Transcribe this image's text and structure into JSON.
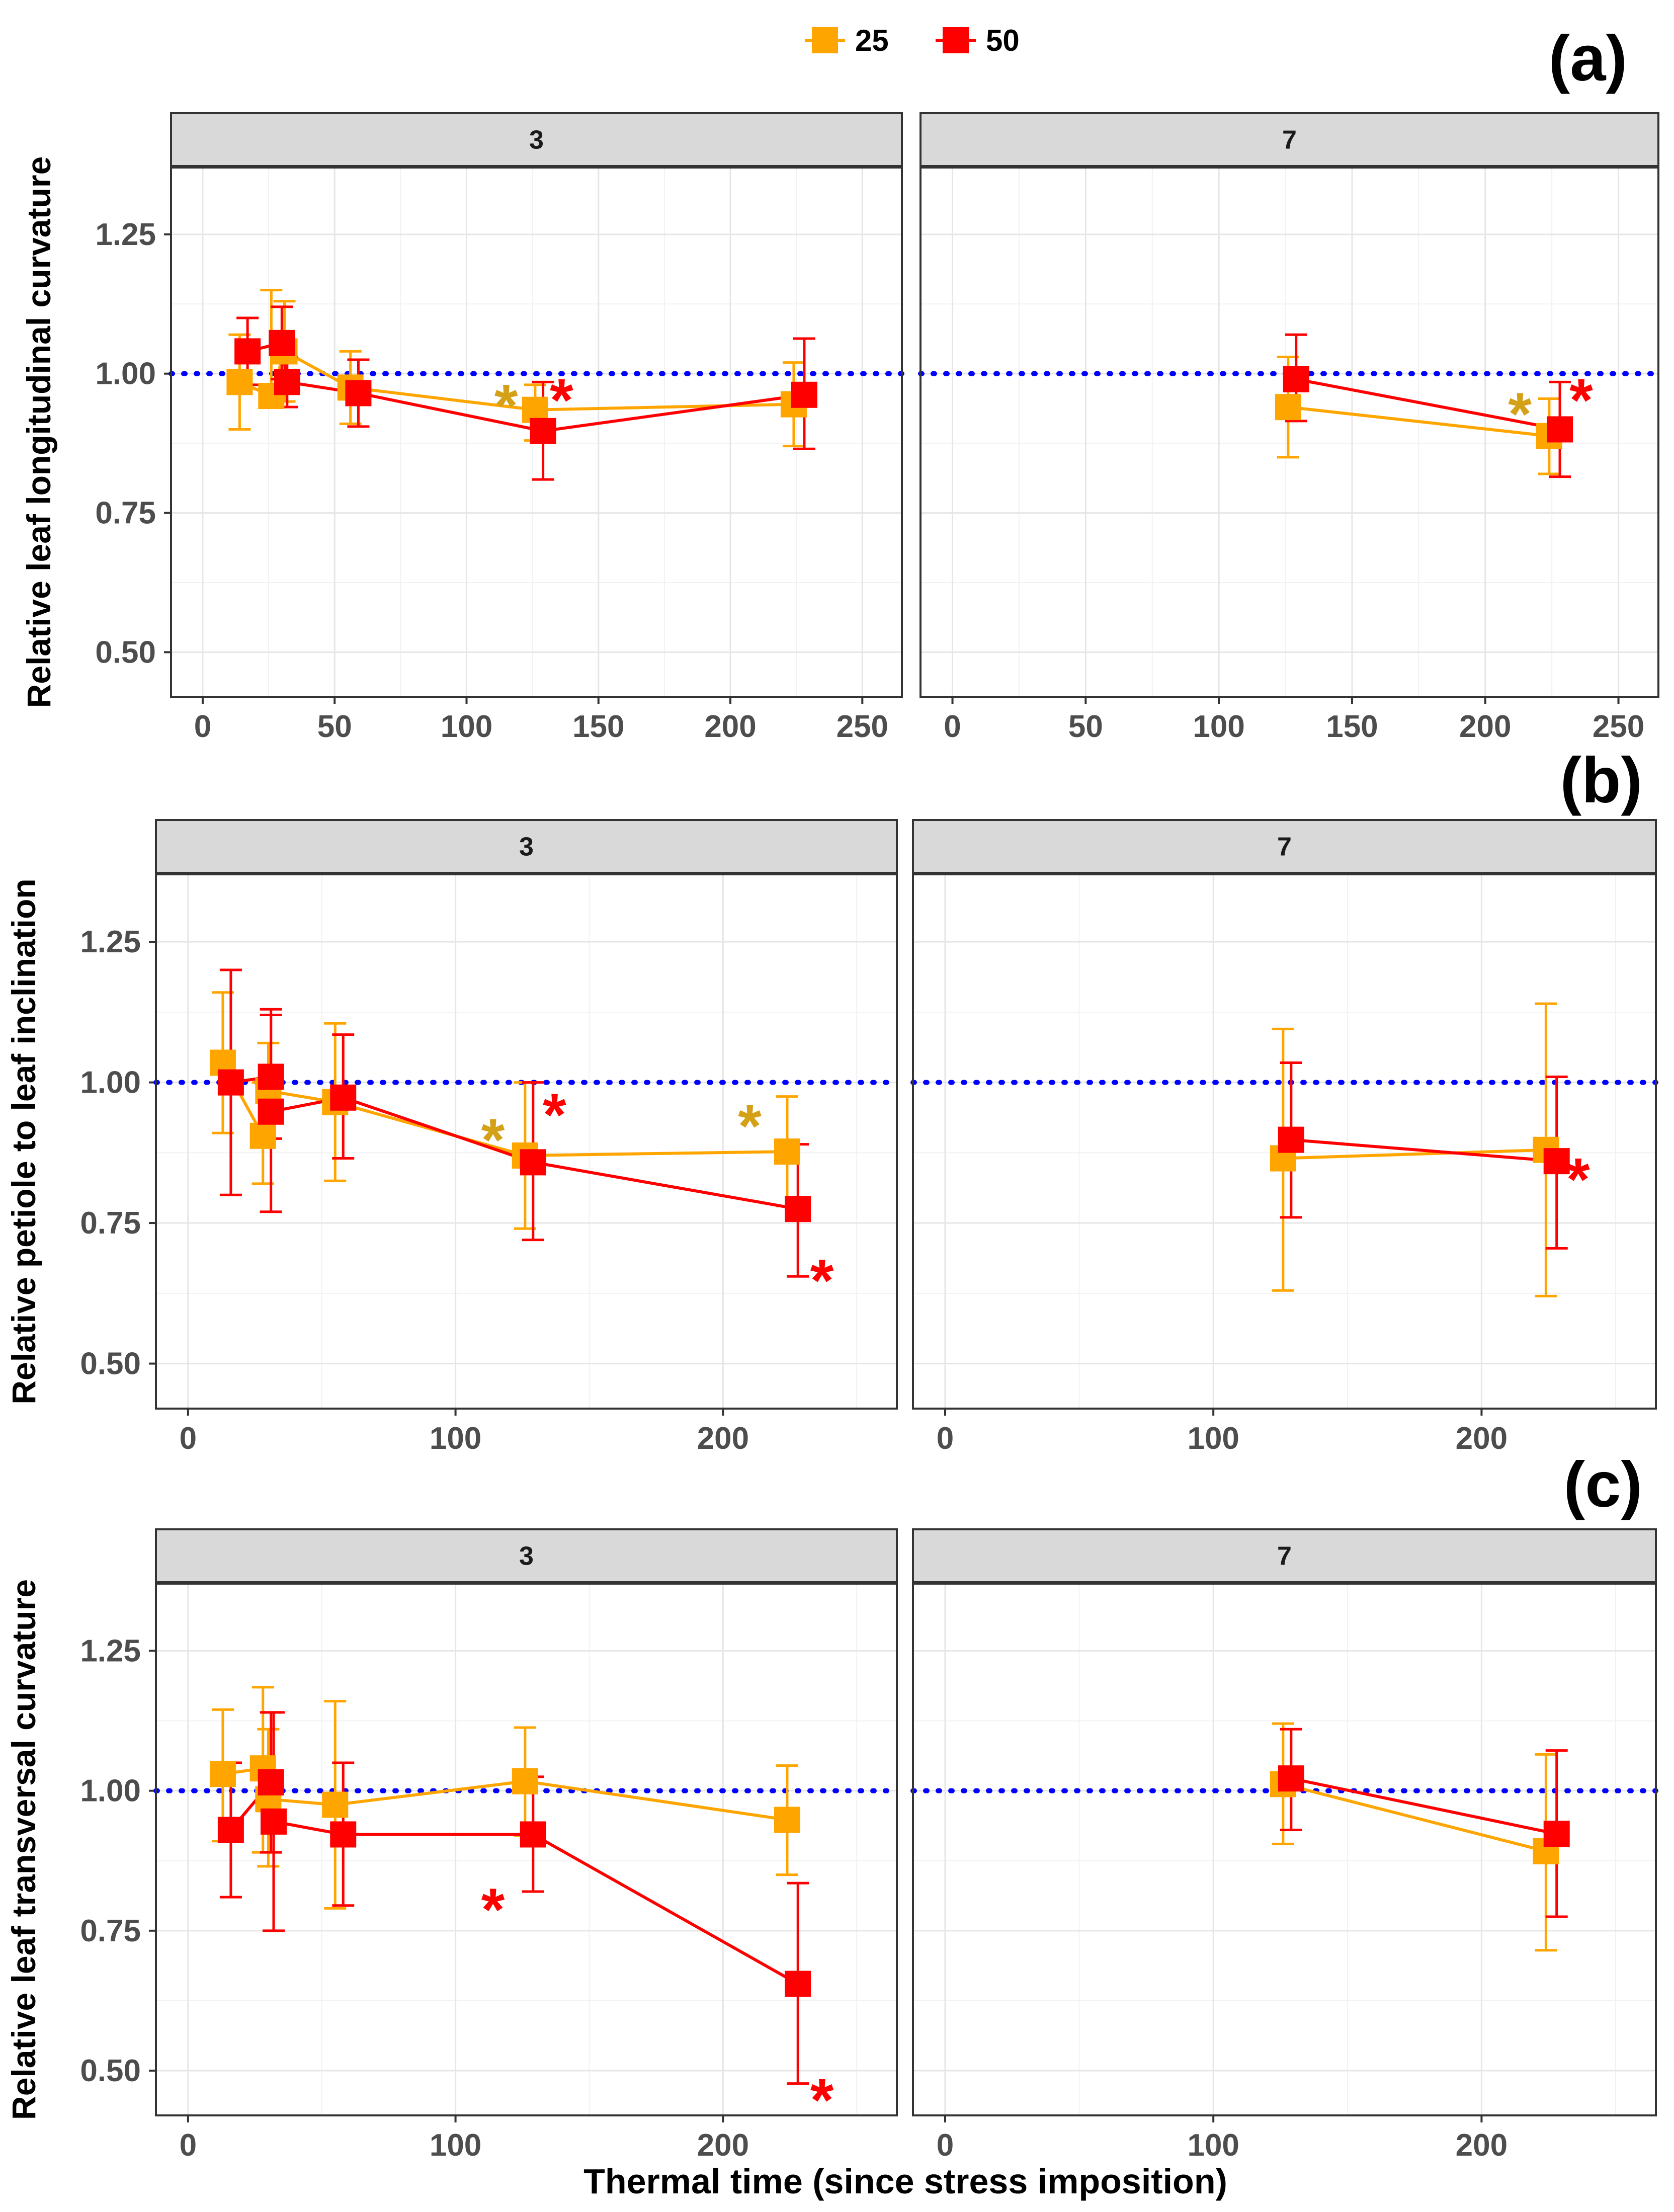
{
  "chart_data": {
    "type": "line",
    "xlabel": "Thermal time (since stress imposition)",
    "legend": {
      "position": "top-center",
      "entries": [
        {
          "name": "25",
          "color": "#FFA500"
        },
        {
          "name": "50",
          "color": "#FF0000"
        }
      ]
    },
    "reference_line": {
      "y": 1.0,
      "color": "#0000FF",
      "style": "dotted"
    },
    "ylim": [
      0.42,
      1.37
    ],
    "yticks": [
      "0.50",
      "0.75",
      "1.00",
      "1.25"
    ],
    "panels": [
      {
        "tag": "(a)",
        "ylabel": "Relative leaf longitudinal curvature",
        "xlim": [
          -12,
          265
        ],
        "xticks": [
          "0",
          "50",
          "100",
          "150",
          "200",
          "250"
        ],
        "facets": [
          {
            "strip": "3",
            "series": [
              {
                "name": "25",
                "points": [
                  {
                    "x": 14,
                    "y": 0.985,
                    "lo": 0.9,
                    "hi": 1.07
                  },
                  {
                    "x": 26,
                    "y": 0.96,
                    "lo": 0.94,
                    "hi": 1.15
                  },
                  {
                    "x": 31,
                    "y": 1.04,
                    "lo": 0.95,
                    "hi": 1.13
                  },
                  {
                    "x": 56,
                    "y": 0.975,
                    "lo": 0.91,
                    "hi": 1.04
                  },
                  {
                    "x": 126,
                    "y": 0.935,
                    "lo": 0.88,
                    "hi": 0.98
                  },
                  {
                    "x": 224,
                    "y": 0.945,
                    "lo": 0.87,
                    "hi": 1.02
                  }
                ]
              },
              {
                "name": "50",
                "points": [
                  {
                    "x": 17,
                    "y": 1.04,
                    "lo": 0.98,
                    "hi": 1.1
                  },
                  {
                    "x": 30,
                    "y": 1.055,
                    "lo": 0.99,
                    "hi": 1.12
                  },
                  {
                    "x": 32,
                    "y": 0.985,
                    "lo": 0.94,
                    "hi": 1.03
                  },
                  {
                    "x": 59,
                    "y": 0.965,
                    "lo": 0.905,
                    "hi": 1.025
                  },
                  {
                    "x": 129,
                    "y": 0.897,
                    "lo": 0.81,
                    "hi": 0.985
                  },
                  {
                    "x": 228,
                    "y": 0.962,
                    "lo": 0.865,
                    "hi": 1.063
                  }
                ]
              }
            ],
            "annotations": [
              {
                "text": "*",
                "x": 115,
                "y": 0.955,
                "series": "25"
              },
              {
                "text": "*",
                "x": 136,
                "y": 0.965,
                "series": "50"
              }
            ]
          },
          {
            "strip": "7",
            "series": [
              {
                "name": "25",
                "points": [
                  {
                    "x": 126,
                    "y": 0.94,
                    "lo": 0.85,
                    "hi": 1.03
                  },
                  {
                    "x": 224,
                    "y": 0.888,
                    "lo": 0.82,
                    "hi": 0.955
                  }
                ]
              },
              {
                "name": "50",
                "points": [
                  {
                    "x": 129,
                    "y": 0.99,
                    "lo": 0.915,
                    "hi": 1.07
                  },
                  {
                    "x": 228,
                    "y": 0.9,
                    "lo": 0.815,
                    "hi": 0.985
                  }
                ]
              }
            ],
            "annotations": [
              {
                "text": "*",
                "x": 213,
                "y": 0.94,
                "series": "25"
              },
              {
                "text": "*",
                "x": 236,
                "y": 0.965,
                "series": "50"
              }
            ]
          }
        ]
      },
      {
        "tag": "(b)",
        "ylabel": "Relative petiole to leaf inclination",
        "xlim": [
          -12,
          265
        ],
        "xticks": [
          "0",
          "100",
          "200"
        ],
        "facets": [
          {
            "strip": "3",
            "series": [
              {
                "name": "25",
                "points": [
                  {
                    "x": 13,
                    "y": 1.035,
                    "lo": 0.91,
                    "hi": 1.16
                  },
                  {
                    "x": 28,
                    "y": 0.905,
                    "lo": 0.82,
                    "hi": 1.0
                  },
                  {
                    "x": 30,
                    "y": 0.985,
                    "lo": 0.9,
                    "hi": 1.07
                  },
                  {
                    "x": 55,
                    "y": 0.965,
                    "lo": 0.825,
                    "hi": 1.105
                  },
                  {
                    "x": 126,
                    "y": 0.87,
                    "lo": 0.74,
                    "hi": 1.0
                  },
                  {
                    "x": 224,
                    "y": 0.877,
                    "lo": 0.78,
                    "hi": 0.975
                  }
                ]
              },
              {
                "name": "50",
                "points": [
                  {
                    "x": 16,
                    "y": 1.0,
                    "lo": 0.8,
                    "hi": 1.2
                  },
                  {
                    "x": 31,
                    "y": 1.01,
                    "lo": 0.9,
                    "hi": 1.13
                  },
                  {
                    "x": 31,
                    "y": 0.948,
                    "lo": 0.77,
                    "hi": 1.12
                  },
                  {
                    "x": 58,
                    "y": 0.973,
                    "lo": 0.865,
                    "hi": 1.085
                  },
                  {
                    "x": 129,
                    "y": 0.858,
                    "lo": 0.72,
                    "hi": 1.0
                  },
                  {
                    "x": 228,
                    "y": 0.775,
                    "lo": 0.655,
                    "hi": 0.89
                  }
                ]
              }
            ],
            "annotations": [
              {
                "text": "*",
                "x": 114,
                "y": 0.91,
                "series": "25"
              },
              {
                "text": "*",
                "x": 137,
                "y": 0.955,
                "series": "50"
              },
              {
                "text": "*",
                "x": 210,
                "y": 0.935,
                "series": "25"
              },
              {
                "text": "*",
                "x": 237,
                "y": 0.66,
                "series": "50"
              }
            ]
          },
          {
            "strip": "7",
            "series": [
              {
                "name": "25",
                "points": [
                  {
                    "x": 126,
                    "y": 0.865,
                    "lo": 0.63,
                    "hi": 1.095
                  },
                  {
                    "x": 224,
                    "y": 0.88,
                    "lo": 0.62,
                    "hi": 1.14
                  }
                ]
              },
              {
                "name": "50",
                "points": [
                  {
                    "x": 129,
                    "y": 0.898,
                    "lo": 0.76,
                    "hi": 1.035
                  },
                  {
                    "x": 228,
                    "y": 0.86,
                    "lo": 0.705,
                    "hi": 1.01
                  }
                ]
              }
            ],
            "annotations": [
              {
                "text": "*",
                "x": 236,
                "y": 0.84,
                "series": "50"
              }
            ]
          }
        ]
      },
      {
        "tag": "(c)",
        "ylabel": "Relative leaf transversal curvature",
        "xlim": [
          -12,
          265
        ],
        "xticks": [
          "0",
          "100",
          "200"
        ],
        "facets": [
          {
            "strip": "3",
            "series": [
              {
                "name": "25",
                "points": [
                  {
                    "x": 13,
                    "y": 1.03,
                    "lo": 0.91,
                    "hi": 1.145
                  },
                  {
                    "x": 28,
                    "y": 1.04,
                    "lo": 0.89,
                    "hi": 1.185
                  },
                  {
                    "x": 30,
                    "y": 0.985,
                    "lo": 0.865,
                    "hi": 1.11
                  },
                  {
                    "x": 55,
                    "y": 0.975,
                    "lo": 0.79,
                    "hi": 1.16
                  },
                  {
                    "x": 126,
                    "y": 1.017,
                    "lo": 0.92,
                    "hi": 1.113
                  },
                  {
                    "x": 224,
                    "y": 0.948,
                    "lo": 0.85,
                    "hi": 1.045
                  }
                ]
              },
              {
                "name": "50",
                "points": [
                  {
                    "x": 16,
                    "y": 0.93,
                    "lo": 0.81,
                    "hi": 1.05
                  },
                  {
                    "x": 31,
                    "y": 1.015,
                    "lo": 0.89,
                    "hi": 1.14
                  },
                  {
                    "x": 32,
                    "y": 0.945,
                    "lo": 0.75,
                    "hi": 1.14
                  },
                  {
                    "x": 58,
                    "y": 0.922,
                    "lo": 0.795,
                    "hi": 1.05
                  },
                  {
                    "x": 129,
                    "y": 0.922,
                    "lo": 0.82,
                    "hi": 1.025
                  },
                  {
                    "x": 228,
                    "y": 0.655,
                    "lo": 0.477,
                    "hi": 0.835
                  }
                ]
              }
            ],
            "annotations": [
              {
                "text": "*",
                "x": 114,
                "y": 0.8,
                "series": "50"
              },
              {
                "text": "*",
                "x": 237,
                "y": 0.46,
                "series": "50"
              }
            ]
          },
          {
            "strip": "7",
            "series": [
              {
                "name": "25",
                "points": [
                  {
                    "x": 126,
                    "y": 1.012,
                    "lo": 0.905,
                    "hi": 1.12
                  },
                  {
                    "x": 224,
                    "y": 0.892,
                    "lo": 0.715,
                    "hi": 1.065
                  }
                ]
              },
              {
                "name": "50",
                "points": [
                  {
                    "x": 129,
                    "y": 1.022,
                    "lo": 0.93,
                    "hi": 1.11
                  },
                  {
                    "x": 228,
                    "y": 0.923,
                    "lo": 0.775,
                    "hi": 1.072
                  }
                ]
              }
            ],
            "annotations": []
          }
        ]
      }
    ]
  }
}
